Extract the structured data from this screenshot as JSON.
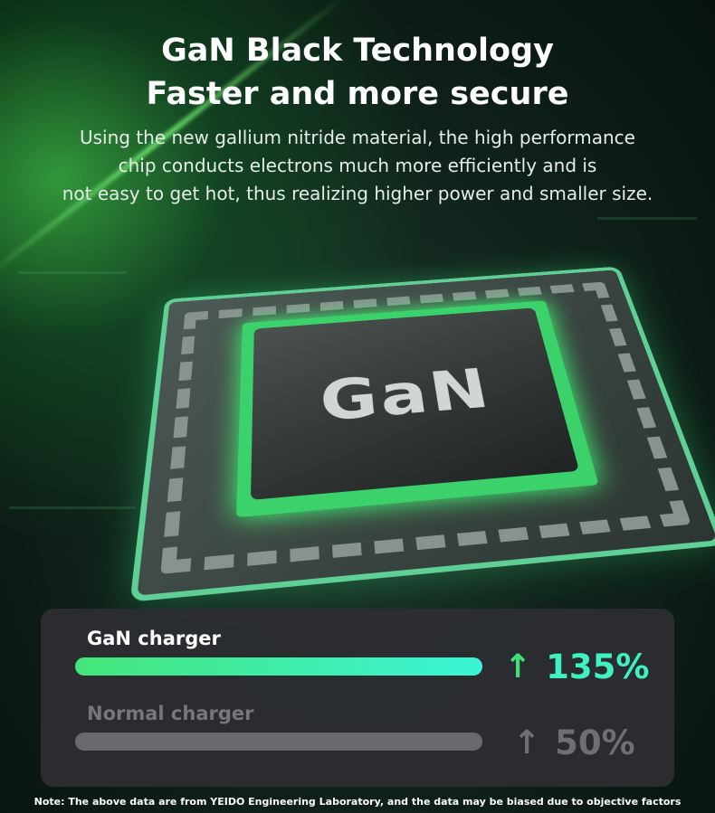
{
  "header": {
    "title_line1": "GaN Black Technology",
    "title_line2": "Faster and more secure",
    "description_lines": [
      "Using the new gallium nitride material, the high performance",
      "chip conducts electrons much more efficiently and is",
      "not easy to get hot, thus realizing higher power and smaller size."
    ]
  },
  "chip": {
    "label": "GaN"
  },
  "comparison": {
    "items": [
      {
        "label": "GaN charger",
        "value": "135%",
        "percent": 135,
        "arrow_icon": "arrow-up-icon",
        "color_start": "#45e57a",
        "color_end": "#3af5d6",
        "text_color": "#3fe89a"
      },
      {
        "label": "Normal charger",
        "value": "50%",
        "percent": 50,
        "arrow_icon": "arrow-up-icon",
        "color": "#6a6a6e",
        "text_color": "#6f6f73"
      }
    ]
  },
  "note": "Note: The above data are from YEIDO Engineering Laboratory, and the data may be biased due to objective factors"
}
